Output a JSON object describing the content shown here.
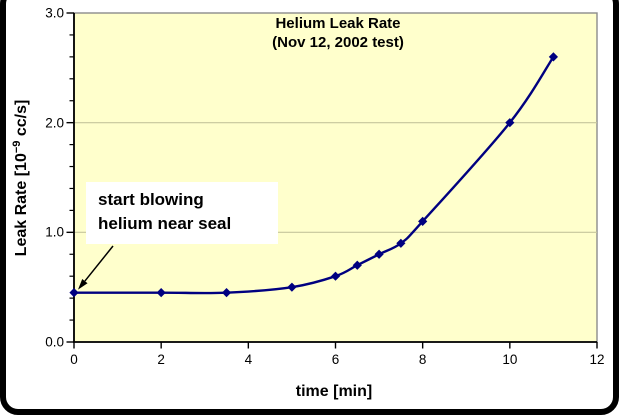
{
  "chart_data": {
    "type": "line",
    "title": "Helium Leak Rate",
    "subtitle": "(Nov 12, 2002 test)",
    "xlabel": "time [min]",
    "ylabel": "Leak Rate [10^-9 cc/s]",
    "ylabel_parts": {
      "prefix": "Leak Rate [10",
      "superscript": "−9",
      "suffix": " cc/s]"
    },
    "series": [
      {
        "name": "helium-leak-rate",
        "x": [
          0,
          2,
          3.5,
          5,
          6,
          6.5,
          7,
          7.5,
          8,
          10,
          11
        ],
        "y": [
          0.45,
          0.45,
          0.45,
          0.5,
          0.6,
          0.7,
          0.8,
          0.9,
          1.1,
          2.0,
          2.6
        ]
      }
    ],
    "xlim": [
      0,
      12
    ],
    "ylim": [
      0,
      3
    ],
    "x_ticks": [
      0,
      2,
      4,
      6,
      8,
      10,
      12
    ],
    "y_ticks": [
      0,
      1,
      2,
      3
    ],
    "y_tick_labels": [
      "0.0",
      "1.0",
      "2.0",
      "3.0"
    ],
    "y_minor_tick_step": 0.2,
    "grid_y": [
      1,
      2
    ],
    "grid_on": true,
    "legend": "none",
    "marker": "diamond",
    "line_smooth": true,
    "annotation": {
      "line1": "start blowing",
      "line2": "helium near seal",
      "points_to": {
        "x": 0,
        "y": 0.45
      }
    },
    "colors": {
      "line": "#000080",
      "marker": "#000080",
      "plot_bg": "#ffffcc",
      "grid": "#c6c69c",
      "plot_border": "#8c8c8c",
      "axis": "#000000",
      "text": "#000000",
      "annotation_bg": "#ffffff",
      "frame_border": "#000000",
      "outer_bg": "#ffffff"
    }
  }
}
